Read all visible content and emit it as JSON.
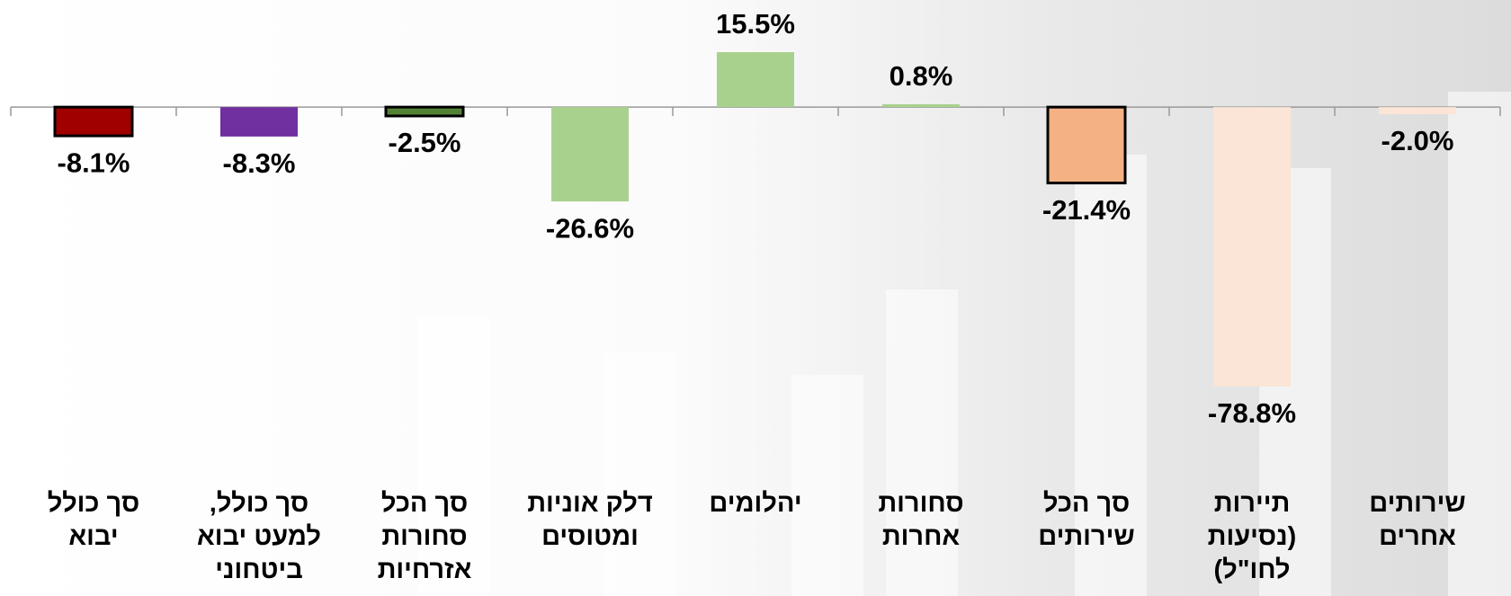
{
  "chart_data": {
    "type": "bar",
    "categories": [
      "סך כולל\nיבוא",
      "סך כולל,\nלמעט יבוא\nביטחוני",
      "סך הכל\nסחורות\nאזרחיות",
      "דלק אוניות\nומטוסים",
      "יהלומים",
      "סחורות\nאחרות",
      "סך הכל\nשירותים",
      "תיירות\n(נסיעות\nלחו\"ל)",
      "שירותים\nאחרים"
    ],
    "values": [
      -8.1,
      -8.3,
      -2.5,
      -26.6,
      15.5,
      0.8,
      -21.4,
      -78.8,
      -2.0
    ],
    "value_labels": [
      "-8.1%",
      "-8.3%",
      "-2.5%",
      "-26.6%",
      "15.5%",
      "0.8%",
      "-21.4%",
      "-78.8%",
      "-2.0%"
    ],
    "colors": [
      "#a00000",
      "#7030a0",
      "#548235",
      "#a9d18e",
      "#a9d18e",
      "#a9d18e",
      "#f4b183",
      "#fbe5d6",
      "#fbe5d6"
    ],
    "bar_borders": [
      true,
      false,
      true,
      false,
      false,
      false,
      true,
      false,
      false
    ]
  }
}
